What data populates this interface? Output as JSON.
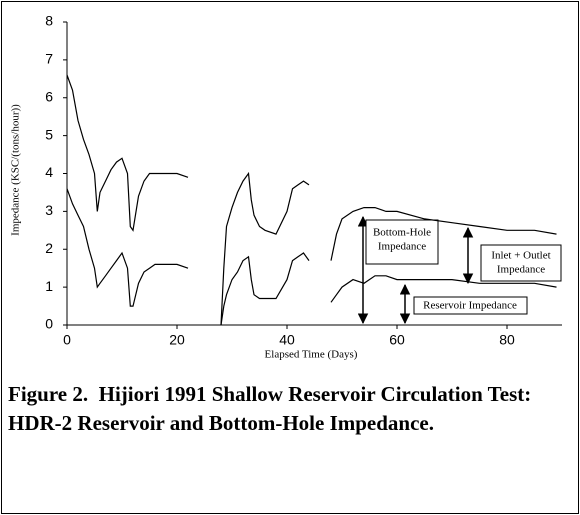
{
  "chart_data": {
    "type": "line",
    "ylabel": "Impedance (KSC/(tons/hour))",
    "xlabel": "Elapsed Time (Days)",
    "caption": "Figure 2.  Hijiori 1991 Shallow Reservoir Circulation Test:  HDR-2 Reservoir and Bottom-Hole Impedance.",
    "x": [
      0,
      1,
      2,
      3,
      4,
      5,
      5.5,
      6,
      7,
      8,
      9,
      10,
      11,
      11.5,
      12,
      13,
      14,
      15,
      16,
      18,
      20,
      22,
      25,
      28,
      28.5,
      29,
      30,
      31,
      32,
      33,
      33.5,
      34,
      35,
      36,
      38,
      40,
      41,
      42,
      43,
      44,
      46,
      48,
      49,
      50,
      52,
      54,
      56,
      58,
      60,
      65,
      70,
      75,
      80,
      85,
      89
    ],
    "series": [
      {
        "color": "#000000",
        "values": [
          6.6,
          6.2,
          5.4,
          4.9,
          4.5,
          4.0,
          3.0,
          3.5,
          3.8,
          4.1,
          4.3,
          4.4,
          4.0,
          2.6,
          2.5,
          3.4,
          3.8,
          4.0,
          4.0,
          4.0,
          4.0,
          3.9,
          null,
          0.0,
          1.5,
          2.6,
          3.1,
          3.5,
          3.8,
          4.0,
          3.3,
          2.9,
          2.6,
          2.5,
          2.4,
          3.0,
          3.6,
          3.7,
          3.8,
          3.7,
          null,
          1.7,
          2.4,
          2.8,
          3.0,
          3.1,
          3.1,
          3.0,
          3.0,
          2.8,
          2.7,
          2.6,
          2.5,
          2.5,
          2.4
        ]
      },
      {
        "color": "#000000",
        "values": [
          3.6,
          3.2,
          2.9,
          2.6,
          2.0,
          1.5,
          1.0,
          1.1,
          1.3,
          1.5,
          1.7,
          1.9,
          1.5,
          0.5,
          0.5,
          1.1,
          1.4,
          1.5,
          1.6,
          1.6,
          1.6,
          1.5,
          null,
          0.0,
          0.5,
          0.8,
          1.2,
          1.4,
          1.7,
          1.8,
          1.2,
          0.8,
          0.7,
          0.7,
          0.7,
          1.2,
          1.7,
          1.8,
          1.9,
          1.7,
          null,
          0.6,
          0.8,
          1.0,
          1.2,
          1.1,
          1.3,
          1.3,
          1.2,
          1.2,
          1.2,
          1.1,
          1.1,
          1.1,
          1.0
        ]
      }
    ],
    "annotations": [
      {
        "lines": [
          "Bottom-Hole",
          "Impedance"
        ]
      },
      {
        "lines": [
          "Inlet + Outlet",
          "Impedance"
        ]
      },
      {
        "lines": [
          "Reservoir Impedance"
        ]
      }
    ],
    "xlim": [
      0,
      90
    ],
    "xticks": [
      0,
      20,
      40,
      60,
      80
    ],
    "ylim": [
      0,
      8
    ],
    "yticks": [
      0,
      1,
      2,
      3,
      4,
      5,
      6,
      7,
      8
    ]
  }
}
